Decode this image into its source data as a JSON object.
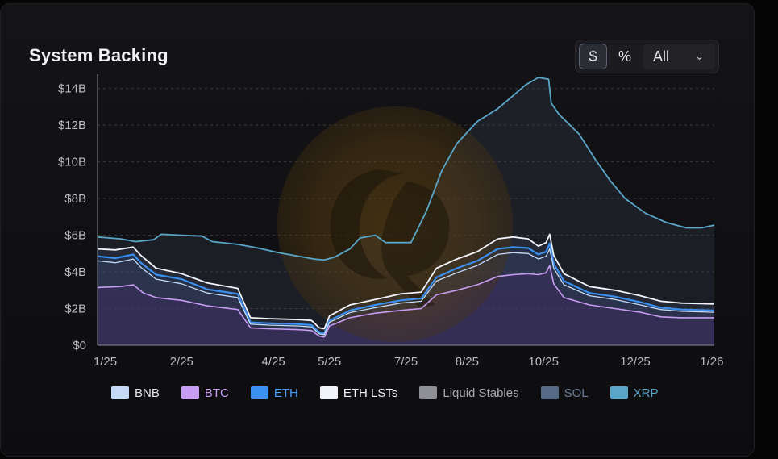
{
  "header": {
    "title": "System Backing"
  },
  "controls": {
    "unit_dollar": "$",
    "unit_percent": "%",
    "range_selected": "All"
  },
  "legend": [
    {
      "label": "BNB",
      "color": "#c4daf7",
      "text_color": "#e6e6ea"
    },
    {
      "label": "BTC",
      "color": "#c79cf2",
      "text_color": "#c79cf2"
    },
    {
      "label": "ETH",
      "color": "#3b8ff0",
      "text_color": "#4a9cf5"
    },
    {
      "label": "ETH LSTs",
      "color": "#f3f4fb",
      "text_color": "#f3f4fb"
    },
    {
      "label": "Liquid Stables",
      "color": "#8f9096",
      "text_color": "#a7a8ae"
    },
    {
      "label": "SOL",
      "color": "#566985",
      "text_color": "#6d7f9c"
    },
    {
      "label": "XRP",
      "color": "#5aa6c9",
      "text_color": "#5aa6c9"
    }
  ],
  "chart_data": {
    "type": "line",
    "title": "System Backing",
    "y_tick_labels": [
      "$0",
      "$2B",
      "$4B",
      "$6B",
      "$8B",
      "$10B",
      "$12B",
      "$14B"
    ],
    "y_ticks": [
      0,
      2,
      4,
      6,
      8,
      10,
      12,
      14
    ],
    "ylim": [
      0,
      14.6
    ],
    "y_unit": "$B",
    "x_tick_labels": [
      "1/25",
      "2/25",
      "4/25",
      "5/25",
      "7/25",
      "8/25",
      "10/25",
      "12/25",
      "1/26"
    ],
    "x_tick_positions": [
      0,
      1.5,
      3.3,
      4.4,
      5.9,
      7.1,
      8.6,
      10.4,
      11.9
    ],
    "xlim": [
      -0.15,
      11.95
    ],
    "x_unit": "months since 1/25",
    "grid": "horizontal dashed",
    "legend_position": "bottom",
    "series": [
      {
        "name": "XRP",
        "color": "#5aa6c9",
        "points": [
          [
            -0.15,
            5.9
          ],
          [
            0.3,
            5.8
          ],
          [
            0.6,
            5.65
          ],
          [
            0.95,
            5.75
          ],
          [
            1.1,
            6.05
          ],
          [
            1.5,
            6.0
          ],
          [
            1.9,
            5.95
          ],
          [
            2.1,
            5.65
          ],
          [
            2.6,
            5.5
          ],
          [
            3.0,
            5.3
          ],
          [
            3.4,
            5.05
          ],
          [
            3.8,
            4.85
          ],
          [
            4.1,
            4.7
          ],
          [
            4.3,
            4.65
          ],
          [
            4.5,
            4.8
          ],
          [
            4.8,
            5.25
          ],
          [
            5.0,
            5.85
          ],
          [
            5.3,
            6.0
          ],
          [
            5.5,
            5.6
          ],
          [
            6.0,
            5.6
          ],
          [
            6.3,
            7.3
          ],
          [
            6.6,
            9.5
          ],
          [
            6.9,
            11.0
          ],
          [
            7.3,
            12.2
          ],
          [
            7.7,
            12.9
          ],
          [
            8.0,
            13.6
          ],
          [
            8.25,
            14.2
          ],
          [
            8.5,
            14.6
          ],
          [
            8.7,
            14.5
          ],
          [
            8.75,
            13.2
          ],
          [
            8.9,
            12.6
          ],
          [
            9.3,
            11.5
          ],
          [
            9.6,
            10.2
          ],
          [
            9.9,
            9.0
          ],
          [
            10.2,
            8.0
          ],
          [
            10.6,
            7.2
          ],
          [
            11.0,
            6.7
          ],
          [
            11.4,
            6.4
          ],
          [
            11.7,
            6.4
          ],
          [
            11.95,
            6.55
          ]
        ]
      },
      {
        "name": "ETH LSTs",
        "color": "#f3f4fb",
        "points": [
          [
            -0.15,
            5.25
          ],
          [
            0.2,
            5.2
          ],
          [
            0.55,
            5.35
          ],
          [
            0.7,
            4.9
          ],
          [
            1.0,
            4.2
          ],
          [
            1.5,
            3.9
          ],
          [
            2.0,
            3.4
          ],
          [
            2.6,
            3.1
          ],
          [
            2.85,
            1.5
          ],
          [
            3.2,
            1.45
          ],
          [
            3.8,
            1.4
          ],
          [
            4.05,
            1.35
          ],
          [
            4.2,
            0.95
          ],
          [
            4.3,
            0.9
          ],
          [
            4.4,
            1.6
          ],
          [
            4.8,
            2.2
          ],
          [
            5.3,
            2.5
          ],
          [
            5.8,
            2.8
          ],
          [
            6.2,
            2.9
          ],
          [
            6.5,
            4.2
          ],
          [
            6.9,
            4.7
          ],
          [
            7.3,
            5.1
          ],
          [
            7.7,
            5.8
          ],
          [
            8.0,
            5.9
          ],
          [
            8.3,
            5.8
          ],
          [
            8.5,
            5.4
          ],
          [
            8.65,
            5.6
          ],
          [
            8.72,
            6.05
          ],
          [
            8.8,
            4.9
          ],
          [
            9.0,
            3.9
          ],
          [
            9.5,
            3.2
          ],
          [
            10.0,
            3.0
          ],
          [
            10.5,
            2.7
          ],
          [
            10.9,
            2.4
          ],
          [
            11.3,
            2.3
          ],
          [
            11.95,
            2.25
          ]
        ]
      },
      {
        "name": "ETH",
        "color": "#3b8ff0",
        "points": [
          [
            -0.15,
            4.85
          ],
          [
            0.2,
            4.75
          ],
          [
            0.55,
            4.95
          ],
          [
            0.7,
            4.5
          ],
          [
            1.0,
            3.85
          ],
          [
            1.5,
            3.6
          ],
          [
            2.0,
            3.05
          ],
          [
            2.6,
            2.8
          ],
          [
            2.85,
            1.25
          ],
          [
            3.2,
            1.2
          ],
          [
            3.8,
            1.15
          ],
          [
            4.05,
            1.1
          ],
          [
            4.2,
            0.7
          ],
          [
            4.3,
            0.65
          ],
          [
            4.4,
            1.35
          ],
          [
            4.8,
            1.9
          ],
          [
            5.3,
            2.2
          ],
          [
            5.8,
            2.45
          ],
          [
            6.2,
            2.55
          ],
          [
            6.5,
            3.7
          ],
          [
            6.9,
            4.2
          ],
          [
            7.3,
            4.6
          ],
          [
            7.7,
            5.25
          ],
          [
            8.0,
            5.35
          ],
          [
            8.3,
            5.3
          ],
          [
            8.5,
            4.95
          ],
          [
            8.65,
            5.1
          ],
          [
            8.72,
            5.55
          ],
          [
            8.8,
            4.45
          ],
          [
            9.0,
            3.5
          ],
          [
            9.5,
            2.85
          ],
          [
            10.0,
            2.65
          ],
          [
            10.5,
            2.35
          ],
          [
            10.9,
            2.05
          ],
          [
            11.3,
            1.95
          ],
          [
            11.95,
            1.9
          ]
        ]
      },
      {
        "name": "BNB",
        "color": "#c4daf7",
        "points": [
          [
            -0.15,
            4.6
          ],
          [
            0.2,
            4.5
          ],
          [
            0.55,
            4.7
          ],
          [
            0.7,
            4.25
          ],
          [
            1.0,
            3.6
          ],
          [
            1.5,
            3.35
          ],
          [
            2.0,
            2.85
          ],
          [
            2.6,
            2.6
          ],
          [
            2.85,
            1.15
          ],
          [
            3.2,
            1.1
          ],
          [
            3.8,
            1.05
          ],
          [
            4.05,
            1.0
          ],
          [
            4.2,
            0.62
          ],
          [
            4.3,
            0.58
          ],
          [
            4.4,
            1.25
          ],
          [
            4.8,
            1.78
          ],
          [
            5.3,
            2.05
          ],
          [
            5.8,
            2.3
          ],
          [
            6.2,
            2.4
          ],
          [
            6.5,
            3.5
          ],
          [
            6.9,
            3.95
          ],
          [
            7.3,
            4.35
          ],
          [
            7.7,
            4.95
          ],
          [
            8.0,
            5.05
          ],
          [
            8.3,
            5.0
          ],
          [
            8.5,
            4.7
          ],
          [
            8.65,
            4.85
          ],
          [
            8.72,
            5.25
          ],
          [
            8.8,
            4.2
          ],
          [
            9.0,
            3.3
          ],
          [
            9.5,
            2.7
          ],
          [
            10.0,
            2.5
          ],
          [
            10.5,
            2.2
          ],
          [
            10.9,
            1.95
          ],
          [
            11.3,
            1.85
          ],
          [
            11.95,
            1.8
          ]
        ]
      },
      {
        "name": "BTC",
        "color": "#c79cf2",
        "points": [
          [
            -0.15,
            3.15
          ],
          [
            0.3,
            3.2
          ],
          [
            0.55,
            3.3
          ],
          [
            0.75,
            2.85
          ],
          [
            1.0,
            2.6
          ],
          [
            1.5,
            2.45
          ],
          [
            2.0,
            2.15
          ],
          [
            2.6,
            1.95
          ],
          [
            2.85,
            0.95
          ],
          [
            3.2,
            0.9
          ],
          [
            3.8,
            0.85
          ],
          [
            4.05,
            0.8
          ],
          [
            4.2,
            0.5
          ],
          [
            4.3,
            0.45
          ],
          [
            4.4,
            1.05
          ],
          [
            4.8,
            1.5
          ],
          [
            5.3,
            1.75
          ],
          [
            5.8,
            1.9
          ],
          [
            6.2,
            2.0
          ],
          [
            6.5,
            2.75
          ],
          [
            6.9,
            3.0
          ],
          [
            7.3,
            3.3
          ],
          [
            7.7,
            3.75
          ],
          [
            8.0,
            3.85
          ],
          [
            8.3,
            3.9
          ],
          [
            8.5,
            3.85
          ],
          [
            8.65,
            3.95
          ],
          [
            8.72,
            4.35
          ],
          [
            8.8,
            3.35
          ],
          [
            9.0,
            2.6
          ],
          [
            9.5,
            2.2
          ],
          [
            10.0,
            2.0
          ],
          [
            10.5,
            1.8
          ],
          [
            10.9,
            1.55
          ],
          [
            11.3,
            1.5
          ],
          [
            11.95,
            1.5
          ]
        ]
      }
    ]
  }
}
